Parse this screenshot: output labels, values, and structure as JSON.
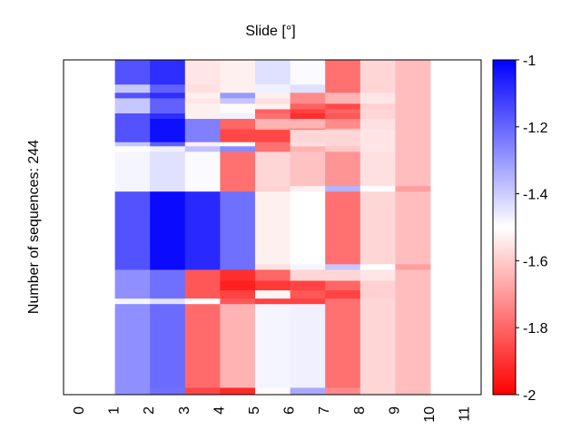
{
  "chart_data": {
    "type": "heatmap",
    "title": "Slide [°]",
    "xlabel": "",
    "ylabel": "Number of sequences: 244",
    "x_tick_labels": [
      "0",
      "1",
      "2",
      "3",
      "4",
      "5",
      "6",
      "7",
      "8",
      "9",
      "10",
      "11"
    ],
    "columns": [
      1,
      2,
      3,
      4,
      5,
      6,
      7,
      8,
      9
    ],
    "colorbar": {
      "range": [
        -2,
        -1
      ],
      "tick_labels": [
        "-1",
        "-1.2",
        "-1.4",
        "-1.6",
        "-1.8",
        "-2"
      ],
      "tick_values": [
        -1,
        -1.2,
        -1.4,
        -1.6,
        -1.8,
        -2
      ],
      "colormap": "bwr",
      "colors": {
        "low": "#ff0000",
        "mid": "#ffffff",
        "high": "#0000ff"
      }
    },
    "total_sequences": 244,
    "row_bands": [
      {
        "from": 0,
        "to": 18,
        "values": [
          -1.16,
          -1.09,
          -1.55,
          -1.53,
          -1.44,
          -1.49,
          -1.78,
          -1.58,
          -1.63
        ]
      },
      {
        "from": 18,
        "to": 24,
        "values": [
          -1.39,
          -1.19,
          -1.56,
          -1.53,
          -1.47,
          -1.44,
          -1.78,
          -1.58,
          -1.63
        ]
      },
      {
        "from": 24,
        "to": 28,
        "values": [
          -1.16,
          -1.09,
          -1.53,
          -1.3,
          -1.53,
          -1.73,
          -1.65,
          -1.55,
          -1.63
        ]
      },
      {
        "from": 28,
        "to": 32,
        "values": [
          -1.39,
          -1.19,
          -1.55,
          -1.39,
          -1.56,
          -1.73,
          -1.65,
          -1.55,
          -1.63
        ]
      },
      {
        "from": 32,
        "to": 36,
        "values": [
          -1.39,
          -1.19,
          -1.53,
          -1.51,
          -1.53,
          -1.81,
          -1.86,
          -1.59,
          -1.63
        ]
      },
      {
        "from": 36,
        "to": 39,
        "values": [
          -1.39,
          -1.19,
          -1.53,
          -1.51,
          -1.81,
          -1.87,
          -1.8,
          -1.58,
          -1.63
        ]
      },
      {
        "from": 39,
        "to": 43,
        "values": [
          -1.16,
          -1.09,
          -1.53,
          -1.47,
          -1.78,
          -1.91,
          -1.83,
          -1.58,
          -1.63
        ]
      },
      {
        "from": 43,
        "to": 50,
        "values": [
          -1.16,
          -1.03,
          -1.25,
          -1.8,
          -1.65,
          -1.65,
          -1.73,
          -1.56,
          -1.63
        ]
      },
      {
        "from": 50,
        "to": 51,
        "values": [
          -1.16,
          -1.03,
          -1.25,
          -1.83,
          -1.69,
          -1.75,
          -1.65,
          -1.56,
          -1.63
        ]
      },
      {
        "from": 51,
        "to": 60,
        "values": [
          -1.16,
          -1.03,
          -1.25,
          -1.86,
          -1.86,
          -1.58,
          -1.58,
          -1.55,
          -1.63
        ]
      },
      {
        "from": 60,
        "to": 63,
        "values": [
          -1.39,
          -1.19,
          -1.53,
          -1.5,
          -1.78,
          -1.56,
          -1.58,
          -1.55,
          -1.63
        ]
      },
      {
        "from": 63,
        "to": 67,
        "values": [
          -1.5,
          -1.47,
          -1.38,
          -1.27,
          -1.78,
          -1.65,
          -1.61,
          -1.55,
          -1.63
        ]
      },
      {
        "from": 67,
        "to": 92,
        "values": [
          -1.48,
          -1.44,
          -1.49,
          -1.78,
          -1.58,
          -1.62,
          -1.71,
          -1.56,
          -1.63
        ]
      },
      {
        "from": 92,
        "to": 96,
        "values": [
          -1.48,
          -1.44,
          -1.49,
          -1.78,
          -1.59,
          -1.53,
          -1.35,
          -1.5,
          -1.69
        ]
      },
      {
        "from": 96,
        "to": 149,
        "values": [
          -1.16,
          -1.02,
          -1.08,
          -1.22,
          -1.53,
          -1.5,
          -1.78,
          -1.58,
          -1.63
        ]
      },
      {
        "from": 149,
        "to": 153,
        "values": [
          -1.16,
          -1.02,
          -1.08,
          -1.22,
          -1.56,
          -1.48,
          -1.39,
          -1.5,
          -1.69
        ]
      },
      {
        "from": 153,
        "to": 161,
        "values": [
          -1.28,
          -1.22,
          -1.83,
          -1.91,
          -1.8,
          -1.58,
          -1.58,
          -1.55,
          -1.63
        ]
      },
      {
        "from": 161,
        "to": 168,
        "values": [
          -1.28,
          -1.22,
          -1.83,
          -1.94,
          -1.89,
          -1.87,
          -1.8,
          -1.59,
          -1.63
        ]
      },
      {
        "from": 168,
        "to": 174,
        "values": [
          -1.28,
          -1.22,
          -1.83,
          -1.87,
          -1.52,
          -1.83,
          -1.87,
          -1.59,
          -1.63
        ]
      },
      {
        "from": 174,
        "to": 178,
        "values": [
          -1.48,
          -1.44,
          -1.5,
          -1.83,
          -1.87,
          -1.87,
          -1.78,
          -1.58,
          -1.63
        ]
      },
      {
        "from": 178,
        "to": 239,
        "values": [
          -1.28,
          -1.21,
          -1.79,
          -1.65,
          -1.48,
          -1.47,
          -1.78,
          -1.58,
          -1.63
        ]
      },
      {
        "from": 239,
        "to": 244,
        "values": [
          -1.28,
          -1.22,
          -1.86,
          -1.92,
          -1.51,
          -1.33,
          -1.73,
          -1.58,
          -1.63
        ]
      }
    ]
  }
}
